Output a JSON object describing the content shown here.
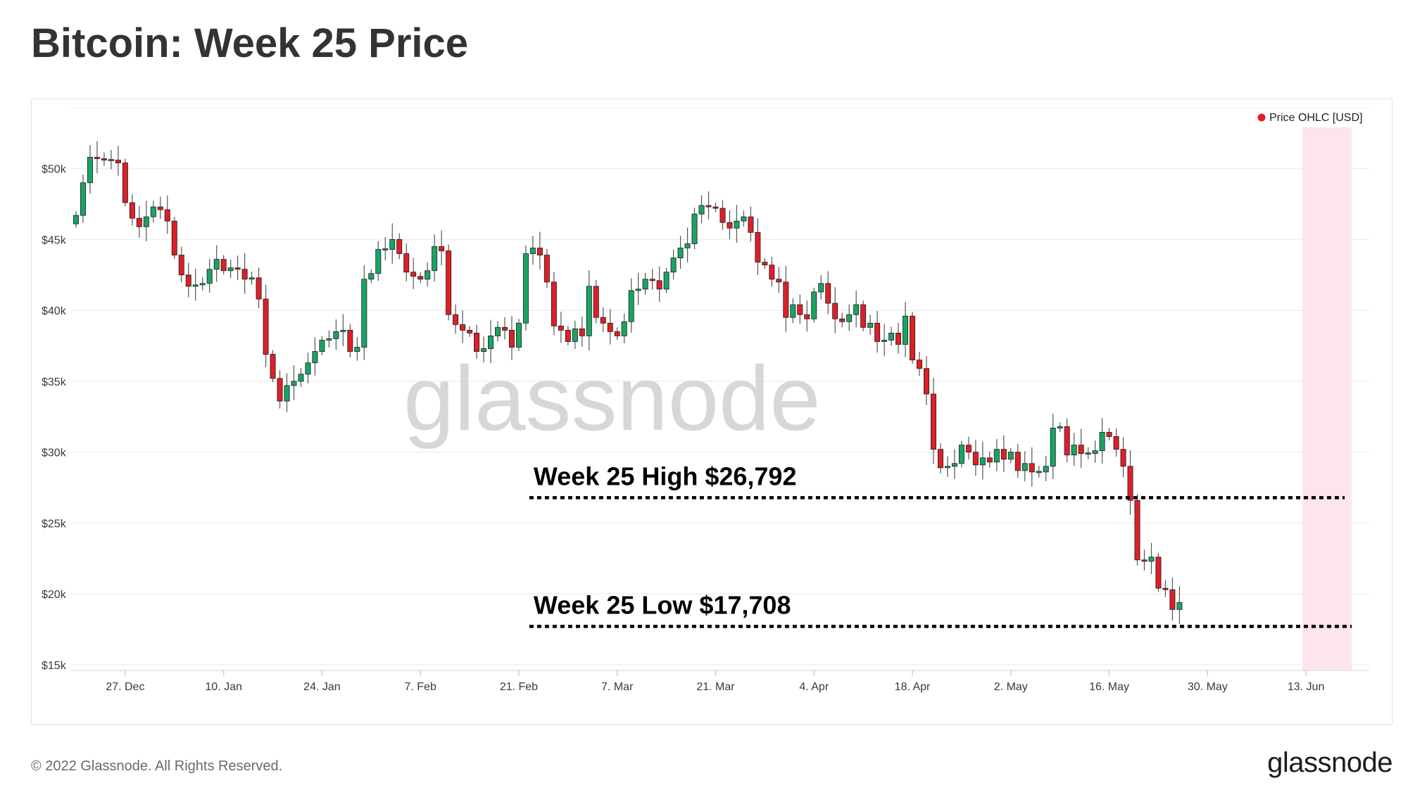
{
  "header": {
    "title": "Bitcoin: Week 25 Price"
  },
  "footer": {
    "copyright": "© 2022 Glassnode. All Rights Reserved.",
    "brand": "glassnode"
  },
  "watermark": "glassnode",
  "colors": {
    "up": "#1aa364",
    "down": "#dd1f26",
    "highlight": "#fde4ee",
    "legend_dot": "#e21d27",
    "grid": "#efefef"
  },
  "chart_data": {
    "type": "candlestick",
    "legend": {
      "label": "Price OHLC [USD]",
      "placement": "top-right"
    },
    "y_ticks": [
      {
        "value": 15000,
        "label": "$15k"
      },
      {
        "value": 20000,
        "label": "$20k"
      },
      {
        "value": 25000,
        "label": "$25k"
      },
      {
        "value": 30000,
        "label": "$30k"
      },
      {
        "value": 35000,
        "label": "$35k"
      },
      {
        "value": 40000,
        "label": "$40k"
      },
      {
        "value": 45000,
        "label": "$45k"
      },
      {
        "value": 50000,
        "label": "$50k"
      }
    ],
    "ylim": [
      14600,
      54300
    ],
    "x_start": "2021-12-20",
    "x_end": "2022-06-19",
    "x_ticks": [
      {
        "date": "2021-12-27",
        "label": "27. Dec"
      },
      {
        "date": "2022-01-10",
        "label": "10. Jan"
      },
      {
        "date": "2022-01-24",
        "label": "24. Jan"
      },
      {
        "date": "2022-02-07",
        "label": "7. Feb"
      },
      {
        "date": "2022-02-21",
        "label": "21. Feb"
      },
      {
        "date": "2022-03-07",
        "label": "7. Mar"
      },
      {
        "date": "2022-03-21",
        "label": "21. Mar"
      },
      {
        "date": "2022-04-04",
        "label": "4. Apr"
      },
      {
        "date": "2022-04-18",
        "label": "18. Apr"
      },
      {
        "date": "2022-05-02",
        "label": "2. May"
      },
      {
        "date": "2022-05-16",
        "label": "16. May"
      },
      {
        "date": "2022-05-30",
        "label": "30. May"
      },
      {
        "date": "2022-06-13",
        "label": "13. Jun"
      }
    ],
    "highlight": {
      "from": "2022-06-13",
      "to": "2022-06-19",
      "label": "Week 25"
    },
    "annotations": [
      {
        "label": "Week 25 High $26,792",
        "value": 26792,
        "from": "2022-02-23",
        "to": "2022-06-18"
      },
      {
        "label": "Week 25 Low $17,708",
        "value": 17708,
        "from": "2022-02-23",
        "to": "2022-06-19"
      }
    ],
    "closes": [
      46700,
      49000,
      50800,
      50700,
      50600,
      50600,
      50400,
      47600,
      46500,
      45900,
      46600,
      47300,
      47100,
      46300,
      43900,
      42500,
      41700,
      41800,
      41900,
      42900,
      43600,
      42800,
      43000,
      42900,
      42200,
      42300,
      40800,
      36900,
      35200,
      33600,
      34700,
      35000,
      35500,
      36300,
      37100,
      37900,
      38000,
      38500,
      38600,
      37100,
      37400,
      42200,
      42600,
      44300,
      44300,
      45000,
      44000,
      42700,
      42400,
      42200,
      42800,
      44500,
      44200,
      39700,
      39000,
      38600,
      38400,
      37100,
      37300,
      38200,
      38800,
      38600,
      37400,
      39100,
      44000,
      44400,
      43900,
      42000,
      38900,
      38600,
      37800,
      38700,
      38200,
      41700,
      39500,
      39100,
      38500,
      38200,
      39200,
      41400,
      41500,
      42200,
      42100,
      41500,
      42700,
      43700,
      44400,
      44700,
      46800,
      47400,
      47300,
      47200,
      46200,
      45800,
      46300,
      46600,
      45500,
      43400,
      43200,
      42200,
      42000,
      39500,
      40400,
      39700,
      39400,
      41300,
      41900,
      40500,
      39400,
      39200,
      39700,
      40400,
      38800,
      39100,
      37800,
      37900,
      38400,
      37600,
      39600,
      36500,
      35900,
      34100,
      30200,
      28900,
      29000,
      29200,
      30500,
      30000,
      29100,
      29600,
      29300,
      30200,
      29500,
      30000,
      28700,
      29200,
      28600,
      28600,
      29000,
      31700,
      31800,
      29800,
      30500,
      29900,
      29900,
      30100,
      31400,
      31100,
      30200,
      29000,
      26600,
      22400,
      22300,
      22600,
      20400,
      20300,
      18900,
      19400
    ]
  }
}
